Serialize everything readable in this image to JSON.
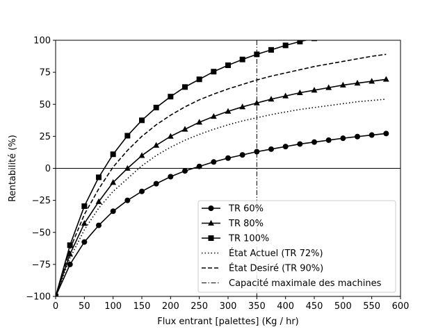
{
  "chart_data": {
    "type": "line",
    "title": "",
    "xlabel": "Flux entrant [palettes] (Kg / hr)",
    "ylabel": "Rentabilité (%)",
    "xlim": [
      0,
      600
    ],
    "ylim": [
      -100,
      100
    ],
    "xticks": [
      0,
      50,
      100,
      150,
      200,
      250,
      300,
      350,
      400,
      450,
      500,
      550,
      600
    ],
    "yticks": [
      -100,
      -75,
      -50,
      -25,
      0,
      25,
      50,
      75,
      100
    ],
    "grid": false,
    "legend_position": "lower-right",
    "x": [
      0,
      25,
      50,
      75,
      100,
      125,
      150,
      175,
      200,
      225,
      250,
      275,
      300,
      325,
      350,
      375,
      400,
      425,
      450,
      475,
      500,
      525,
      550,
      575
    ],
    "series": [
      {
        "name": "TR 60%",
        "style": "solid",
        "marker": "circle",
        "color": "#000000",
        "values": [
          -100,
          -75,
          -57.5,
          -44.5,
          -33.5,
          -25,
          -18,
          -12,
          -6.5,
          -2,
          1.5,
          5,
          8,
          10.5,
          13,
          15,
          17,
          19,
          20.5,
          22,
          23.5,
          24.8,
          26,
          27.2
        ]
      },
      {
        "name": "TR 80%",
        "style": "solid",
        "marker": "triangle",
        "color": "#000000",
        "values": [
          -100,
          -67,
          -43,
          -26,
          -11,
          0,
          10,
          18,
          25,
          30.5,
          36,
          40.5,
          44.5,
          48,
          51,
          54,
          56.5,
          59,
          61,
          63,
          65,
          66.5,
          68,
          69.5
        ]
      },
      {
        "name": "TR 100%",
        "style": "solid",
        "marker": "square",
        "color": "#000000",
        "values": [
          -100,
          -60,
          -29.5,
          -7,
          11,
          25.5,
          37.5,
          47.5,
          56,
          63.5,
          69.5,
          75.5,
          80.5,
          85,
          89,
          92.5,
          96,
          99,
          101.5,
          104,
          106.5,
          108.5,
          110.5,
          112.5
        ]
      },
      {
        "name": "État Actuel (TR 72%)",
        "style": "dotted",
        "marker": "none",
        "color": "#000000",
        "values": [
          -100,
          -70,
          -48,
          -31,
          -18,
          -8,
          2,
          10,
          16.5,
          22,
          26.5,
          30.5,
          34,
          37,
          39.5,
          42,
          44,
          46,
          47.5,
          49,
          50.5,
          52,
          53,
          54
        ]
      },
      {
        "name": "État Desiré (TR 90%)",
        "style": "dashed",
        "marker": "none",
        "color": "#000000",
        "values": [
          -100,
          -63,
          -36,
          -16,
          1,
          14,
          25,
          34,
          41.5,
          48,
          53.5,
          58,
          62,
          65.5,
          69,
          72,
          74.5,
          77,
          79.5,
          81.5,
          83.5,
          85.5,
          87.5,
          89
        ]
      }
    ],
    "reference_lines": [
      {
        "orientation": "horizontal",
        "value": 0,
        "style": "solid",
        "color": "#000000"
      },
      {
        "orientation": "vertical",
        "value": 350,
        "style": "dashdot",
        "color": "#000000",
        "name": "Capacité maximale des machines"
      }
    ]
  }
}
